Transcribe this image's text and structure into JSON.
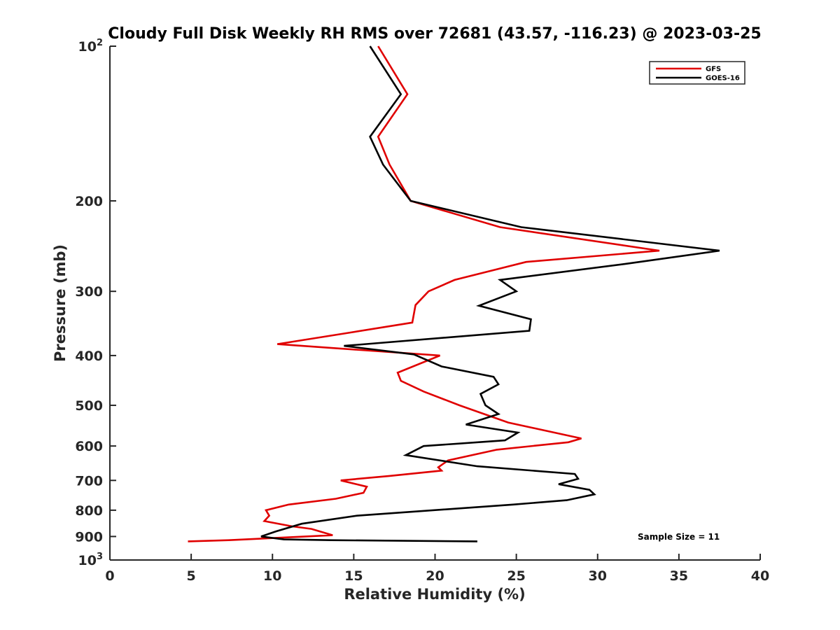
{
  "chart_data": {
    "type": "line",
    "title": "Cloudy Full Disk Weekly RH RMS over 72681 (43.57, -116.23) @ 2023-03-25",
    "xlabel": "Relative Humidity (%)",
    "ylabel": "Pressure (mb)",
    "xlim": [
      0,
      40
    ],
    "ylim": [
      100,
      1000
    ],
    "yscale": "log",
    "y_reversed": true,
    "grid": false,
    "legend_position": "top-right",
    "xticks": [
      "0",
      "5",
      "10",
      "15",
      "20",
      "25",
      "30",
      "35",
      "40"
    ],
    "yticks": [
      {
        "value": 100,
        "base": "10",
        "exp": "2"
      },
      {
        "value": 200,
        "label": "200"
      },
      {
        "value": 300,
        "label": "300"
      },
      {
        "value": 400,
        "label": "400"
      },
      {
        "value": 500,
        "label": "500"
      },
      {
        "value": 600,
        "label": "600"
      },
      {
        "value": 700,
        "label": "700"
      },
      {
        "value": 800,
        "label": "800"
      },
      {
        "value": 900,
        "label": "900"
      },
      {
        "value": 1000,
        "base": "10",
        "exp": "3"
      }
    ],
    "series": [
      {
        "name": "GFS",
        "color": "#e00000",
        "points": [
          [
            16.5,
            100
          ],
          [
            18.3,
            124
          ],
          [
            16.5,
            150
          ],
          [
            17.2,
            170
          ],
          [
            18.5,
            200
          ],
          [
            24.0,
            225
          ],
          [
            33.8,
            250
          ],
          [
            25.6,
            263
          ],
          [
            21.2,
            285
          ],
          [
            19.6,
            300
          ],
          [
            18.8,
            319
          ],
          [
            18.6,
            345
          ],
          [
            14.5,
            362
          ],
          [
            10.3,
            380
          ],
          [
            20.3,
            400
          ],
          [
            17.7,
            432
          ],
          [
            17.9,
            448
          ],
          [
            19.3,
            470
          ],
          [
            21.5,
            500
          ],
          [
            24.5,
            540
          ],
          [
            29.0,
            580
          ],
          [
            28.2,
            590
          ],
          [
            23.8,
            610
          ],
          [
            20.8,
            640
          ],
          [
            20.2,
            660
          ],
          [
            20.4,
            670
          ],
          [
            17.2,
            686
          ],
          [
            14.2,
            700
          ],
          [
            15.8,
            720
          ],
          [
            15.6,
            740
          ],
          [
            13.9,
            760
          ],
          [
            11.0,
            780
          ],
          [
            9.6,
            800
          ],
          [
            9.8,
            820
          ],
          [
            9.5,
            840
          ],
          [
            11.2,
            860
          ],
          [
            12.4,
            870
          ],
          [
            13.7,
            895
          ],
          [
            7.3,
            915
          ],
          [
            4.8,
            920
          ]
        ]
      },
      {
        "name": "GOES-16",
        "color": "#000000",
        "points": [
          [
            16.0,
            100
          ],
          [
            17.9,
            124
          ],
          [
            16.0,
            150
          ],
          [
            16.8,
            170
          ],
          [
            18.5,
            200
          ],
          [
            25.3,
            225
          ],
          [
            37.5,
            250
          ],
          [
            31.8,
            265
          ],
          [
            24.0,
            285
          ],
          [
            25.0,
            300
          ],
          [
            22.7,
            320
          ],
          [
            25.9,
            340
          ],
          [
            25.8,
            358
          ],
          [
            14.4,
            383
          ],
          [
            18.7,
            398
          ],
          [
            20.4,
            420
          ],
          [
            23.6,
            440
          ],
          [
            23.9,
            455
          ],
          [
            22.8,
            475
          ],
          [
            23.1,
            500
          ],
          [
            23.9,
            520
          ],
          [
            21.9,
            545
          ],
          [
            25.1,
            565
          ],
          [
            24.3,
            585
          ],
          [
            19.3,
            600
          ],
          [
            18.2,
            625
          ],
          [
            22.6,
            657
          ],
          [
            28.6,
            680
          ],
          [
            28.8,
            695
          ],
          [
            27.6,
            712
          ],
          [
            29.5,
            730
          ],
          [
            29.8,
            745
          ],
          [
            28.1,
            765
          ],
          [
            24.8,
            780
          ],
          [
            15.2,
            820
          ],
          [
            11.8,
            850
          ],
          [
            10.2,
            880
          ],
          [
            9.3,
            900
          ],
          [
            10.7,
            912
          ],
          [
            13.6,
            915
          ],
          [
            22.6,
            920
          ]
        ]
      }
    ],
    "annotations": [
      {
        "text": "Sample Size = 11"
      }
    ]
  }
}
